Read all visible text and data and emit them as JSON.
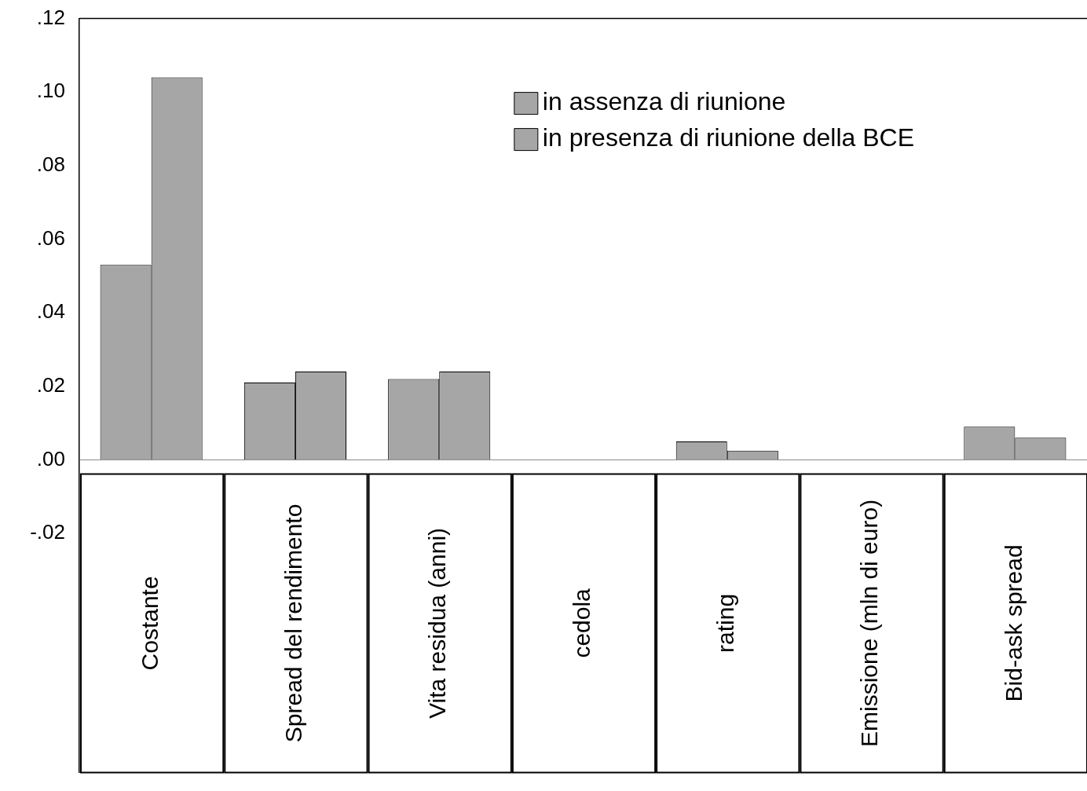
{
  "chart_data": {
    "type": "bar",
    "categories": [
      "Costante",
      "Spread del rendimento",
      "Vita residua (anni)",
      "cedola",
      "rating",
      "Emissione (mln di euro)",
      "Bid-ask spread"
    ],
    "series": [
      {
        "name": "in assenza di riunione",
        "color": "#a6a6a6",
        "values": [
          0.053,
          0.021,
          0.022,
          0,
          0.005,
          0,
          0.009
        ]
      },
      {
        "name": "in presenza di riunione della BCE",
        "color": "#a6a6a6",
        "values": [
          0.104,
          0.024,
          0.024,
          0,
          0.0025,
          0,
          0.006
        ]
      }
    ],
    "ylim": [
      -0.085,
      0.12
    ],
    "yticks": [
      {
        "value": 0.12,
        "label": ".12"
      },
      {
        "value": 0.1,
        "label": ".10"
      },
      {
        "value": 0.08,
        "label": ".08"
      },
      {
        "value": 0.06,
        "label": ".06"
      },
      {
        "value": 0.04,
        "label": ".04"
      },
      {
        "value": 0.02,
        "label": ".02"
      },
      {
        "value": 0,
        "label": ".00"
      },
      {
        "value": -0.02,
        "label": "-.02"
      }
    ],
    "grid": false,
    "legend": "top right"
  }
}
